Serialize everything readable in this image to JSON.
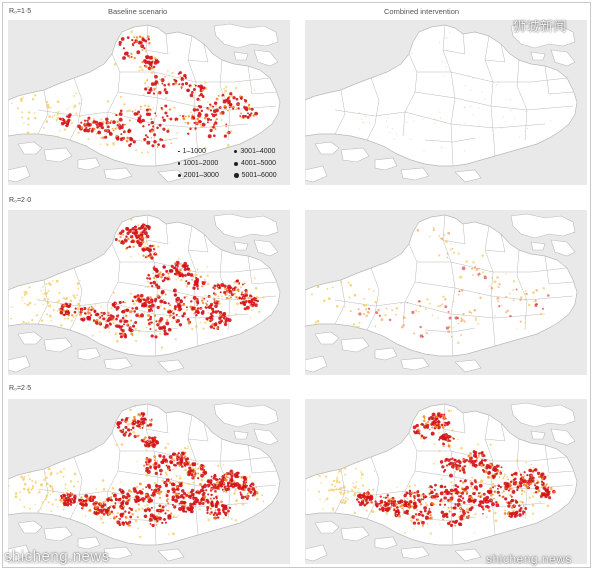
{
  "columns": [
    "Baseline scenario",
    "Combined intervention"
  ],
  "rows": [
    "R₀=1·5",
    "R₀=2·0",
    "R₀=2·5"
  ],
  "legend": [
    {
      "label": "1–1000",
      "size": 1
    },
    {
      "label": "1001–2000",
      "size": 2
    },
    {
      "label": "2001–3000",
      "size": 3
    },
    {
      "label": "3001–4000",
      "size": 4
    },
    {
      "label": "4001–5000",
      "size": 5
    },
    {
      "label": "5001–6000",
      "size": 6
    }
  ],
  "watermarks": {
    "top_right": "狮城新闻",
    "bottom_left": "shicheng.news",
    "bottom_right": "shicheng.news"
  },
  "colors": {
    "sea": "#e9e9e9",
    "land": "#ffffff",
    "boundary": "#b9b9b9",
    "hot": "#d4141a",
    "warm": "#f08a2a",
    "mild": "#f5cf6a"
  },
  "panels": [
    {
      "row": 0,
      "col": 0,
      "level": 0.62
    },
    {
      "row": 0,
      "col": 1,
      "level": 0.0
    },
    {
      "row": 1,
      "col": 0,
      "level": 0.8
    },
    {
      "row": 1,
      "col": 1,
      "level": 0.3
    },
    {
      "row": 2,
      "col": 0,
      "level": 0.92
    },
    {
      "row": 2,
      "col": 1,
      "level": 0.88
    }
  ]
}
